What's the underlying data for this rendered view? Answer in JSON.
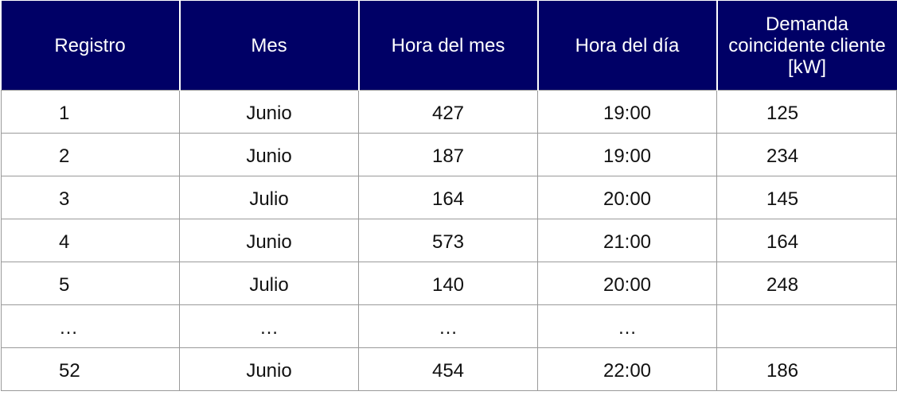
{
  "table": {
    "headers": [
      "Registro",
      "Mes",
      "Hora del mes",
      "Hora del día",
      "Demanda coincidente cliente [kW]"
    ],
    "rows": [
      [
        "1",
        "Junio",
        "427",
        "19:00",
        "125"
      ],
      [
        "2",
        "Junio",
        "187",
        "19:00",
        "234"
      ],
      [
        "3",
        "Julio",
        "164",
        "20:00",
        "145"
      ],
      [
        "4",
        "Junio",
        "573",
        "21:00",
        "164"
      ],
      [
        "5",
        "Julio",
        "140",
        "20:00",
        "248"
      ],
      [
        "…",
        "…",
        "…",
        "…",
        ""
      ],
      [
        "52",
        "Junio",
        "454",
        "22:00",
        "186"
      ]
    ]
  },
  "colors": {
    "header_background": "#000066",
    "header_text": "#ffffff",
    "cell_border": "#9a9a9a"
  }
}
